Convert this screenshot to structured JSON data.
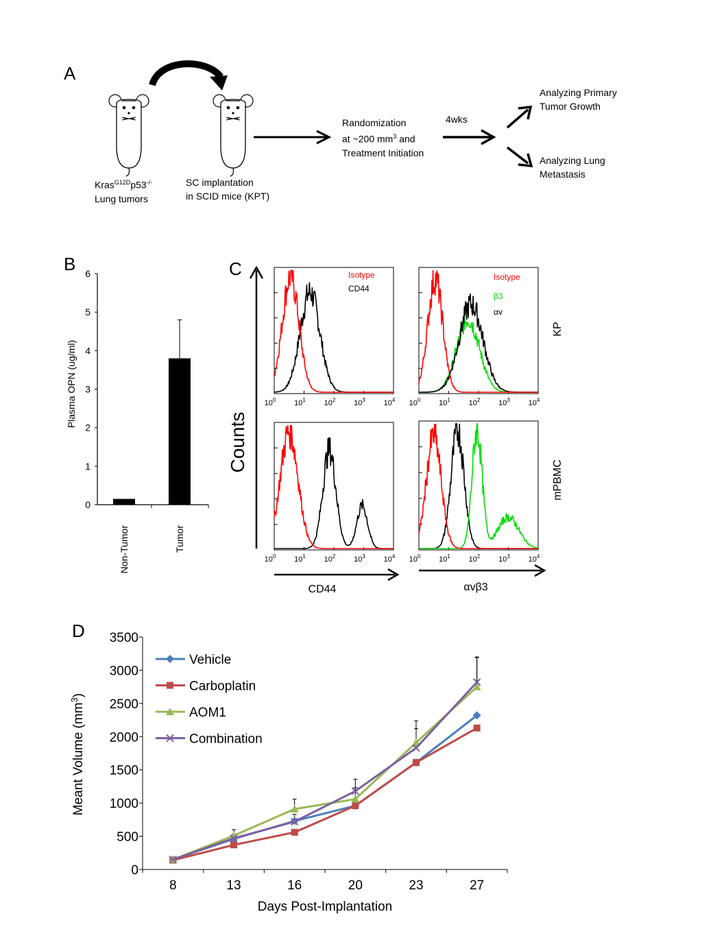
{
  "panel_a": {
    "letter": "A",
    "mouse1_label_line1_base": "Kras",
    "mouse1_label_line1_sup1": "G12D",
    "mouse1_label_line1_mid": "p53",
    "mouse1_label_line1_sup2": "-/-",
    "mouse1_label_line2": "Lung tumors",
    "mouse2_label_line1": "SC implantation",
    "mouse2_label_line2": "in SCID mice (KPT)",
    "randomization_line1": "Randomization",
    "randomization_line2_base": "at ~200 mm",
    "randomization_line2_sup": "3",
    "randomization_line2_tail": " and",
    "randomization_line3": "Treatment Initiation",
    "duration_label": "4wks",
    "outcome1_line1": "Analyzing  Primary",
    "outcome1_line2": "Tumor Growth",
    "outcome2_line1": "Analyzing  Lung",
    "outcome2_line2": "Metastasis"
  },
  "chart_data": [
    {
      "panel": "B",
      "type": "bar",
      "ylabel": "Plasma OPN (ug/ml)",
      "ylim": [
        0,
        6
      ],
      "yticks": [
        "0",
        "1",
        "2",
        "3",
        "4",
        "5",
        "6"
      ],
      "categories": [
        "Non-Tumor",
        "Tumor"
      ],
      "values": [
        0.15,
        3.8
      ],
      "errors": [
        0,
        1.0
      ],
      "bar_color": "#000000"
    },
    {
      "panel": "C",
      "type": "histogram",
      "ylabel": "Counts",
      "x_scale": "log",
      "xticks": [
        "10",
        "10",
        "10",
        "10",
        "10"
      ],
      "xtick_exponents": [
        "0",
        "1",
        "2",
        "3",
        "4"
      ],
      "column_xlabels": [
        "CD44",
        "αvβ3"
      ],
      "row_labels": [
        "KP",
        "mPBMC"
      ],
      "legends": {
        "cd44": [
          "Isotype",
          "CD44"
        ],
        "integrin": [
          "Isotype",
          "β3",
          "αv"
        ]
      },
      "colors": {
        "isotype": "#ff0000",
        "marker": "#000000",
        "beta3": "#00dd00"
      },
      "subplots": [
        {
          "row": "KP",
          "column": "CD44",
          "curves": [
            {
              "name": "Isotype",
              "peak_log10": 0.55,
              "width": 0.28,
              "amp": 0.95
            },
            {
              "name": "CD44",
              "peak_log10": 1.2,
              "width": 0.33,
              "amp": 0.82
            }
          ]
        },
        {
          "row": "KP",
          "column": "αvβ3",
          "curves": [
            {
              "name": "Isotype",
              "peak_log10": 0.55,
              "width": 0.25,
              "amp": 0.93
            },
            {
              "name": "β3",
              "peak_log10": 1.65,
              "width": 0.38,
              "amp": 0.6
            },
            {
              "name": "αv",
              "peak_log10": 1.75,
              "width": 0.4,
              "amp": 0.72
            }
          ]
        },
        {
          "row": "mPBMC",
          "column": "CD44",
          "curves": [
            {
              "name": "Isotype",
              "peak_log10": 0.5,
              "width": 0.3,
              "amp": 0.95
            },
            {
              "name": "CD44",
              "peak_log10": 1.85,
              "width": 0.22,
              "amp": 0.8
            },
            {
              "name": "CD44",
              "peak_log10": 2.95,
              "width": 0.18,
              "amp": 0.35
            }
          ]
        },
        {
          "row": "mPBMC",
          "column": "αvβ3",
          "curves": [
            {
              "name": "Isotype",
              "peak_log10": 0.5,
              "width": 0.25,
              "amp": 0.9
            },
            {
              "name": "αv",
              "peak_log10": 1.3,
              "width": 0.22,
              "amp": 0.95
            },
            {
              "name": "β3",
              "peak_log10": 1.95,
              "width": 0.17,
              "amp": 0.95
            },
            {
              "name": "β3",
              "peak_log10": 3.0,
              "width": 0.35,
              "amp": 0.25
            }
          ]
        }
      ]
    },
    {
      "panel": "D",
      "type": "line",
      "xlabel": "Days Post-Implantation",
      "ylabel_base": "Meant Volume (mm",
      "ylabel_sup": "3",
      "ylabel_tail": ")",
      "ylim": [
        0,
        3500
      ],
      "yticks": [
        "0",
        "500",
        "1000",
        "1500",
        "2000",
        "2500",
        "3000",
        "3500"
      ],
      "categories": [
        "8",
        "13",
        "16",
        "20",
        "23",
        "27"
      ],
      "series": [
        {
          "name": "Vehicle",
          "color": "#4a7ebb",
          "marker": "diamond",
          "values": [
            150,
            460,
            730,
            960,
            1610,
            2320
          ],
          "errors": [
            0,
            0,
            0,
            0,
            0,
            0
          ]
        },
        {
          "name": "Carboplatin",
          "color": "#be4b48",
          "marker": "square",
          "values": [
            140,
            370,
            560,
            960,
            1610,
            2130
          ],
          "errors": [
            0,
            0,
            0,
            0,
            0,
            0
          ]
        },
        {
          "name": "AOM1",
          "color": "#98b954",
          "marker": "triangle",
          "values": [
            150,
            510,
            910,
            1060,
            1910,
            2750
          ],
          "errors": [
            0,
            90,
            150,
            170,
            330,
            440
          ]
        },
        {
          "name": "Combination",
          "color": "#7d60a0",
          "marker": "x",
          "values": [
            150,
            470,
            720,
            1180,
            1830,
            2820
          ],
          "errors": [
            0,
            60,
            110,
            180,
            290,
            380
          ]
        }
      ]
    }
  ]
}
